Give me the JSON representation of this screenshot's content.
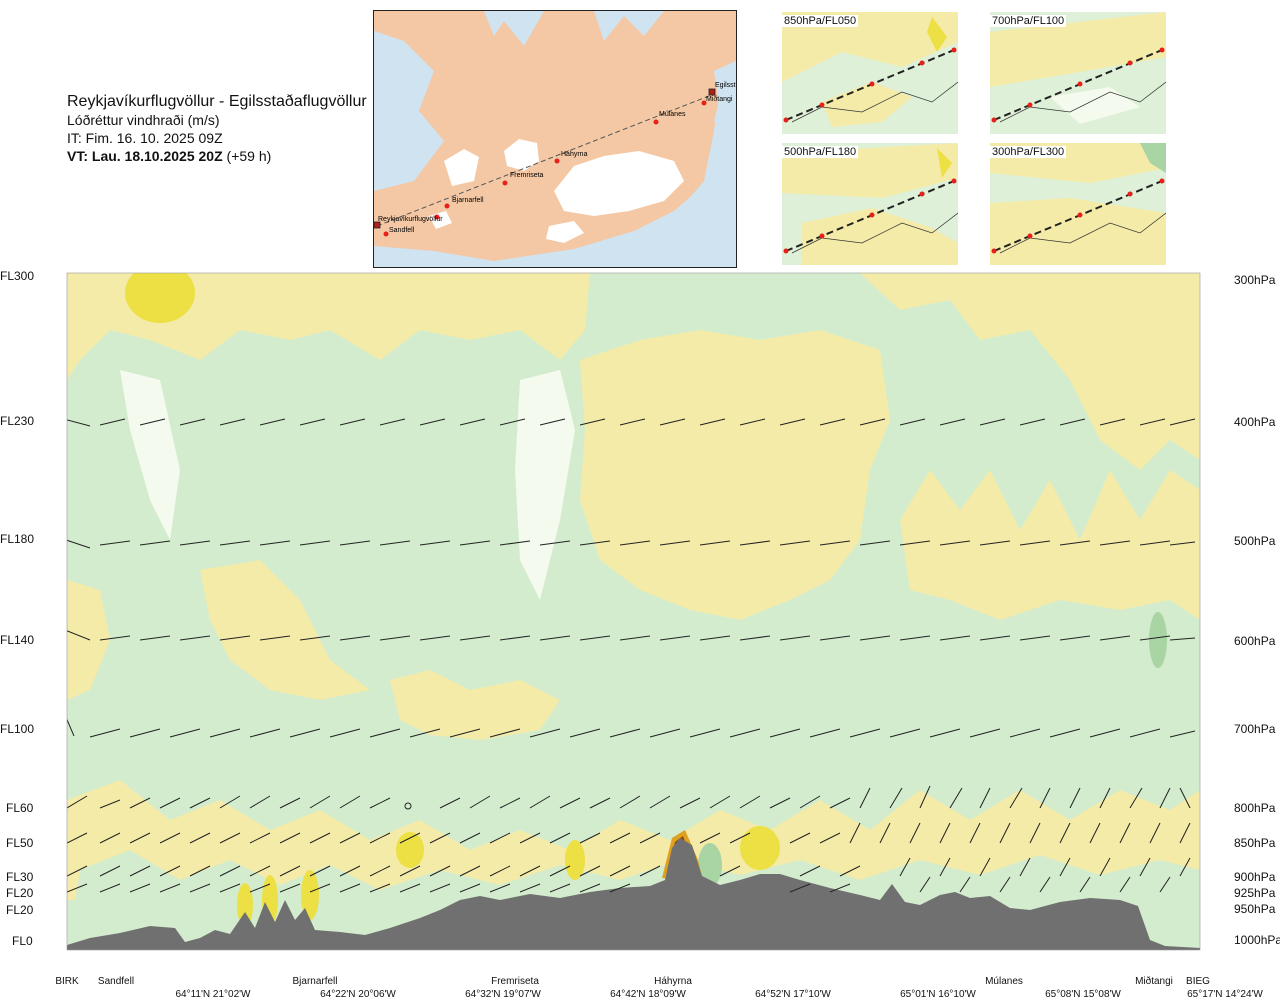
{
  "header": {
    "route": "Reykjavíkurflugvöllur - Egilsstaðaflugvöllur",
    "variable": "Lóðréttur vindhraði (m/s)",
    "issue_time": "IT: Fim. 16. 10. 2025 09Z",
    "valid_prefix": "VT: Lau. 18.10.2025 20Z",
    "valid_suffix": "(+59 h)"
  },
  "map": {
    "waypoints": [
      {
        "name": "Reykjavíkurflugvöllur"
      },
      {
        "name": "Sandfell"
      },
      {
        "name": "Bjarnarfell"
      },
      {
        "name": "Fremriseta"
      },
      {
        "name": "Háhyrna"
      },
      {
        "name": "Múlanes"
      },
      {
        "name": "Miðtangi"
      },
      {
        "name": "Egilsstaðir"
      }
    ]
  },
  "mini_maps": [
    {
      "label": "850hPa/FL050"
    },
    {
      "label": "700hPa/FL100"
    },
    {
      "label": "500hPa/FL180"
    },
    {
      "label": "300hPa/FL300"
    }
  ],
  "colors": {
    "land": "#f4c8a4",
    "ocean": "#cfe3f1",
    "ice": "#ffffff",
    "terrain": "#707070",
    "fill_yellow": "#f4eba8",
    "fill_green": "#d3ecce",
    "fill_white": "#f4faee",
    "fill_dark_green": "#a9d4a3",
    "fill_strong_yellow": "#ece044",
    "fill_orange": "#e0a020",
    "fill_brown": "#8a4a10",
    "route_red": "#e8201a"
  },
  "chart_data": {
    "type": "heatmap",
    "levels_left": [
      "FL300",
      "FL230",
      "FL180",
      "FL140",
      "FL100",
      "FL60",
      "FL50",
      "FL30",
      "FL20",
      "FL20",
      "FL0"
    ],
    "levels_right": [
      "300hPa",
      "400hPa",
      "500hPa",
      "600hPa",
      "700hPa",
      "800hPa",
      "850hPa",
      "900hPa",
      "925hPa",
      "950hPa",
      "1000hPa"
    ],
    "pressure_hpa": [
      300,
      400,
      500,
      600,
      700,
      800,
      850,
      900,
      925,
      950,
      1000
    ],
    "waypoint_labels": [
      "BIRK",
      "Sandfell",
      "Bjarnarfell",
      "Fremriseta",
      "Háhyrna",
      "Múlanes",
      "Miðtangi",
      "BIEG"
    ],
    "coordinate_labels": [
      "64°11'N 21°02'W",
      "64°22'N 20°06'W",
      "64°32'N 19°07'W",
      "64°42'N 18°09'W",
      "64°52'N 17°10'W",
      "65°01'N 16°10'W",
      "65°08'N 15°08'W",
      "65°17'N 14°24'W"
    ]
  }
}
